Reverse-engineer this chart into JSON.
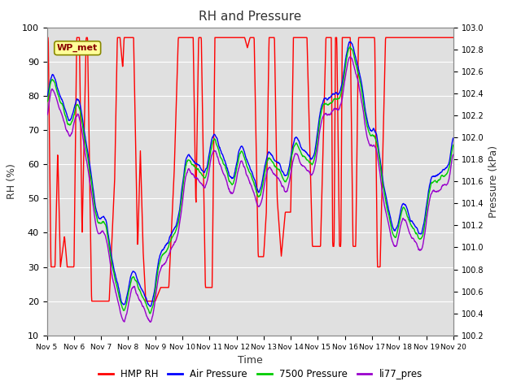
{
  "title": "RH and Pressure",
  "xlabel": "Time",
  "ylabel_left": "RH (%)",
  "ylabel_right": "Pressure (kPa)",
  "ylim_left": [
    10,
    100
  ],
  "ylim_right": [
    100.2,
    103.0
  ],
  "background_color": "#ffffff",
  "plot_bg_color": "#e0e0e0",
  "grid_color": "#ffffff",
  "x_tick_labels": [
    "Nov 5",
    "Nov 6",
    "Nov 7",
    "Nov 8",
    "Nov 9",
    "Nov 10",
    "Nov 11",
    "Nov 12",
    "Nov 13",
    "Nov 14",
    "Nov 15",
    "Nov 16",
    "Nov 17",
    "Nov 18",
    "Nov 19",
    "Nov 20"
  ],
  "annotation_text": "WP_met",
  "annotation_box_color": "#ffff99",
  "annotation_box_edge": "#888800",
  "series_colors": [
    "#ff0000",
    "#0000ff",
    "#00cc00",
    "#9900cc"
  ],
  "series_labels": [
    "HMP RH",
    "Air Pressure",
    "7500 Pressure",
    "li77_pres"
  ],
  "series_linewidths": [
    1.0,
    1.0,
    1.0,
    1.0
  ]
}
